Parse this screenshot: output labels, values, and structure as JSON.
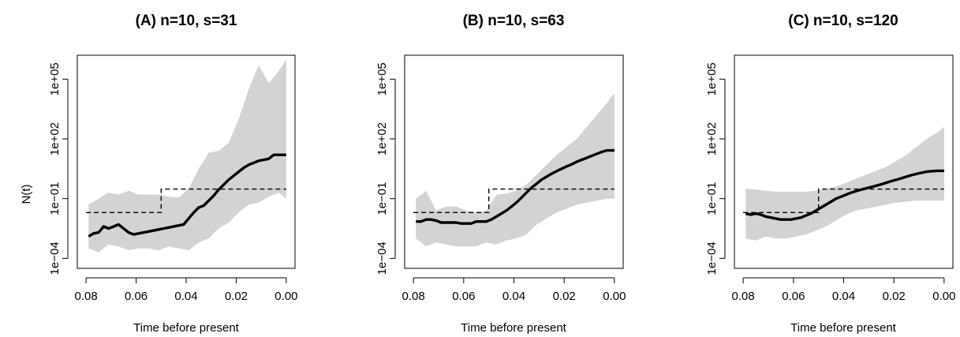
{
  "chart_data": [
    {
      "type": "line",
      "title": "(A) n=10, s=31",
      "xlabel": "Time before present",
      "ylabel": "N(t)",
      "xlim": [
        0.08,
        0.0
      ],
      "x_reversed": true,
      "y_scale": "log10",
      "ylim_log10": [
        -4.5,
        6.2
      ],
      "x_ticks": [
        "0.08",
        "0.06",
        "0.04",
        "0.02",
        "0.00"
      ],
      "y_ticks": [
        "1e−04",
        "1e−01",
        "1e+02",
        "1e+05"
      ],
      "series": [
        {
          "style": "thick-solid",
          "x": [
            0.079,
            0.077,
            0.075,
            0.073,
            0.071,
            0.069,
            0.067,
            0.065,
            0.063,
            0.061,
            0.059,
            0.057,
            0.055,
            0.053,
            0.051,
            0.049,
            0.047,
            0.045,
            0.043,
            0.041,
            0.039,
            0.037,
            0.035,
            0.033,
            0.031,
            0.029,
            0.027,
            0.025,
            0.023,
            0.021,
            0.019,
            0.017,
            0.015,
            0.013,
            0.011,
            0.009,
            0.007,
            0.005,
            0.003,
            0.001,
            0.0
          ],
          "log10_y": [
            -2.9,
            -2.75,
            -2.7,
            -2.4,
            -2.5,
            -2.4,
            -2.3,
            -2.5,
            -2.7,
            -2.8,
            -2.75,
            -2.7,
            -2.65,
            -2.6,
            -2.55,
            -2.5,
            -2.45,
            -2.4,
            -2.35,
            -2.3,
            -2.0,
            -1.7,
            -1.45,
            -1.35,
            -1.1,
            -0.85,
            -0.55,
            -0.3,
            -0.05,
            0.15,
            0.35,
            0.55,
            0.7,
            0.8,
            0.9,
            0.95,
            1.0,
            1.2,
            1.2,
            1.2,
            1.2
          ]
        },
        {
          "style": "dashed-step",
          "x": [
            0.08,
            0.05,
            0.05,
            0.0
          ],
          "log10_y": [
            -1.7,
            -1.7,
            -0.52,
            -0.52
          ]
        }
      ],
      "band": {
        "x": [
          0.079,
          0.075,
          0.071,
          0.067,
          0.063,
          0.059,
          0.055,
          0.051,
          0.047,
          0.043,
          0.039,
          0.035,
          0.031,
          0.027,
          0.023,
          0.019,
          0.015,
          0.011,
          0.007,
          0.003,
          0.0
        ],
        "log10_upper": [
          -1.3,
          -1.0,
          -0.7,
          -0.8,
          -0.6,
          -0.8,
          -0.8,
          -0.8,
          -0.9,
          -0.95,
          -0.5,
          0.5,
          1.3,
          1.4,
          1.8,
          3.0,
          4.5,
          5.7,
          4.8,
          5.4,
          6.0
        ],
        "log10_lower": [
          -3.5,
          -3.7,
          -3.3,
          -3.4,
          -3.6,
          -3.5,
          -3.5,
          -3.6,
          -3.4,
          -3.5,
          -3.6,
          -3.2,
          -3.0,
          -2.5,
          -2.2,
          -1.7,
          -1.3,
          -1.2,
          -0.9,
          -0.7,
          -1.0
        ]
      }
    },
    {
      "type": "line",
      "title": "(B) n=10, s=63",
      "xlabel": "Time before present",
      "ylabel": "",
      "xlim": [
        0.08,
        0.0
      ],
      "x_reversed": true,
      "y_scale": "log10",
      "ylim_log10": [
        -4.5,
        6.2
      ],
      "x_ticks": [
        "0.08",
        "0.06",
        "0.04",
        "0.02",
        "0.00"
      ],
      "y_ticks": [
        "1e−04",
        "1e−01",
        "1e+02",
        "1e+05"
      ],
      "series": [
        {
          "style": "thick-solid",
          "x": [
            0.079,
            0.077,
            0.075,
            0.073,
            0.071,
            0.069,
            0.067,
            0.065,
            0.063,
            0.061,
            0.059,
            0.057,
            0.055,
            0.053,
            0.051,
            0.049,
            0.047,
            0.045,
            0.043,
            0.041,
            0.039,
            0.037,
            0.035,
            0.033,
            0.031,
            0.029,
            0.027,
            0.025,
            0.023,
            0.021,
            0.019,
            0.017,
            0.015,
            0.013,
            0.011,
            0.009,
            0.007,
            0.005,
            0.003,
            0.001,
            0.0
          ],
          "log10_y": [
            -2.15,
            -2.15,
            -2.05,
            -2.05,
            -2.1,
            -2.2,
            -2.2,
            -2.2,
            -2.2,
            -2.25,
            -2.25,
            -2.25,
            -2.15,
            -2.15,
            -2.15,
            -2.05,
            -1.9,
            -1.75,
            -1.6,
            -1.4,
            -1.2,
            -0.95,
            -0.7,
            -0.45,
            -0.25,
            -0.05,
            0.1,
            0.25,
            0.38,
            0.5,
            0.62,
            0.72,
            0.85,
            0.95,
            1.05,
            1.15,
            1.25,
            1.35,
            1.42,
            1.42,
            1.42
          ]
        },
        {
          "style": "dashed-step",
          "x": [
            0.08,
            0.05,
            0.05,
            0.0
          ],
          "log10_y": [
            -1.7,
            -1.7,
            -0.52,
            -0.52
          ]
        }
      ],
      "band": {
        "x": [
          0.079,
          0.075,
          0.071,
          0.067,
          0.063,
          0.059,
          0.055,
          0.051,
          0.047,
          0.043,
          0.039,
          0.035,
          0.031,
          0.027,
          0.023,
          0.019,
          0.015,
          0.011,
          0.007,
          0.003,
          0.0
        ],
        "log10_upper": [
          -1.0,
          -0.6,
          -1.6,
          -1.4,
          -1.4,
          -1.6,
          -1.7,
          -1.6,
          -0.8,
          -0.75,
          -0.6,
          -0.3,
          0.2,
          0.7,
          1.2,
          1.6,
          2.0,
          2.6,
          3.2,
          3.8,
          4.3
        ],
        "log10_lower": [
          -3.0,
          -3.4,
          -3.2,
          -3.3,
          -3.4,
          -3.4,
          -3.4,
          -3.2,
          -3.3,
          -3.1,
          -3.0,
          -2.8,
          -2.3,
          -2.0,
          -1.7,
          -1.5,
          -1.3,
          -1.2,
          -1.1,
          -1.0,
          -1.0
        ]
      }
    },
    {
      "type": "line",
      "title": "(C) n=10, s=120",
      "xlabel": "Time before present",
      "ylabel": "",
      "xlim": [
        0.08,
        0.0
      ],
      "x_reversed": true,
      "y_scale": "log10",
      "ylim_log10": [
        -4.5,
        6.2
      ],
      "x_ticks": [
        "0.08",
        "0.06",
        "0.04",
        "0.02",
        "0.00"
      ],
      "y_ticks": [
        "1e−04",
        "1e−01",
        "1e+02",
        "1e+05"
      ],
      "series": [
        {
          "style": "thick-solid",
          "x": [
            0.079,
            0.077,
            0.075,
            0.073,
            0.071,
            0.069,
            0.067,
            0.065,
            0.063,
            0.061,
            0.059,
            0.057,
            0.055,
            0.053,
            0.051,
            0.049,
            0.047,
            0.045,
            0.043,
            0.041,
            0.039,
            0.037,
            0.035,
            0.033,
            0.031,
            0.029,
            0.027,
            0.025,
            0.023,
            0.021,
            0.019,
            0.017,
            0.015,
            0.013,
            0.011,
            0.009,
            0.007,
            0.005,
            0.003,
            0.001,
            0.0
          ],
          "log10_y": [
            -1.75,
            -1.8,
            -1.75,
            -1.8,
            -1.9,
            -1.95,
            -2.0,
            -2.05,
            -2.05,
            -2.05,
            -2.0,
            -1.95,
            -1.85,
            -1.75,
            -1.6,
            -1.45,
            -1.3,
            -1.15,
            -1.0,
            -0.9,
            -0.8,
            -0.7,
            -0.62,
            -0.55,
            -0.48,
            -0.42,
            -0.35,
            -0.28,
            -0.2,
            -0.12,
            -0.05,
            0.02,
            0.1,
            0.18,
            0.24,
            0.3,
            0.35,
            0.38,
            0.4,
            0.4,
            0.4
          ]
        },
        {
          "style": "dashed-step",
          "x": [
            0.08,
            0.05,
            0.05,
            0.0
          ],
          "log10_y": [
            -1.7,
            -1.7,
            -0.52,
            -0.52
          ]
        }
      ],
      "band": {
        "x": [
          0.079,
          0.075,
          0.071,
          0.067,
          0.063,
          0.059,
          0.055,
          0.051,
          0.047,
          0.043,
          0.039,
          0.035,
          0.031,
          0.027,
          0.023,
          0.019,
          0.015,
          0.011,
          0.007,
          0.003,
          0.0
        ],
        "log10_upper": [
          -0.5,
          -0.55,
          -0.6,
          -0.65,
          -0.65,
          -0.65,
          -0.65,
          -0.6,
          -0.5,
          -0.4,
          -0.2,
          0.0,
          0.2,
          0.4,
          0.6,
          0.9,
          1.2,
          1.6,
          2.0,
          2.3,
          2.6
        ],
        "log10_lower": [
          -3.0,
          -3.1,
          -2.9,
          -3.0,
          -3.0,
          -2.9,
          -2.8,
          -2.6,
          -2.4,
          -2.1,
          -1.8,
          -1.6,
          -1.5,
          -1.4,
          -1.3,
          -1.2,
          -1.15,
          -1.1,
          -1.1,
          -1.1,
          -1.1
        ]
      }
    }
  ]
}
